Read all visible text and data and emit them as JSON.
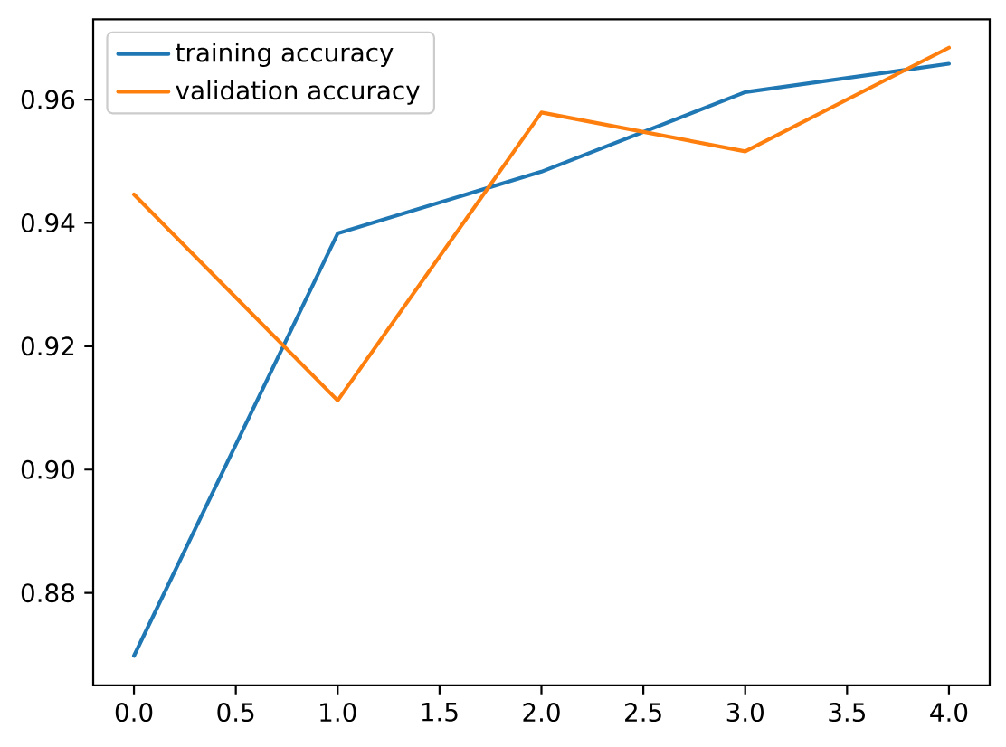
{
  "chart_data": {
    "type": "line",
    "x": [
      0,
      1,
      2,
      3,
      4
    ],
    "series": [
      {
        "name": "training accuracy",
        "color": "#1f77b4",
        "values": [
          0.8698,
          0.9383,
          0.9483,
          0.9612,
          0.9658
        ]
      },
      {
        "name": "validation accuracy",
        "color": "#ff7f0e",
        "values": [
          0.9446,
          0.9112,
          0.9579,
          0.9516,
          0.9684
        ]
      }
    ],
    "xlim": [
      -0.2,
      4.2
    ],
    "ylim": [
      0.865,
      0.973
    ],
    "xticks": [
      {
        "value": 0,
        "label": "0.0"
      },
      {
        "value": 0.5,
        "label": "0.5"
      },
      {
        "value": 1,
        "label": "1.0"
      },
      {
        "value": 1.5,
        "label": "1.5"
      },
      {
        "value": 2,
        "label": "2.0"
      },
      {
        "value": 2.5,
        "label": "2.5"
      },
      {
        "value": 3,
        "label": "3.0"
      },
      {
        "value": 3.5,
        "label": "3.5"
      },
      {
        "value": 4,
        "label": "4.0"
      }
    ],
    "yticks": [
      {
        "value": 0.88,
        "label": "0.88"
      },
      {
        "value": 0.9,
        "label": "0.90"
      },
      {
        "value": 0.92,
        "label": "0.92"
      },
      {
        "value": 0.94,
        "label": "0.94"
      },
      {
        "value": 0.96,
        "label": "0.96"
      }
    ],
    "legend": "top left"
  }
}
